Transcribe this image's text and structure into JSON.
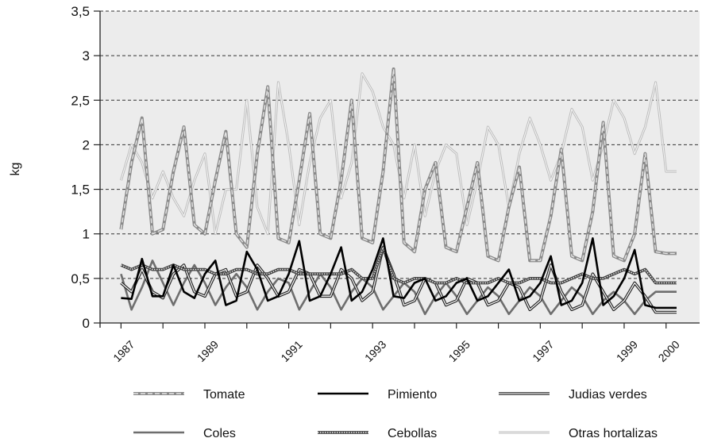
{
  "chart_data": {
    "type": "line",
    "title": "",
    "xlabel": "",
    "ylabel": "kg",
    "ylim": [
      0,
      3.5
    ],
    "xlim": [
      1986.5,
      2000.8
    ],
    "grid": true,
    "legend_position": "bottom",
    "y_ticks": [
      {
        "value": 0,
        "label": "0"
      },
      {
        "value": 0.5,
        "label": "0,5"
      },
      {
        "value": 1,
        "label": "1"
      },
      {
        "value": 1.5,
        "label": "1,5"
      },
      {
        "value": 2,
        "label": "2"
      },
      {
        "value": 2.5,
        "label": "2,5"
      },
      {
        "value": 3,
        "label": "3"
      },
      {
        "value": 3.5,
        "label": "3,5"
      }
    ],
    "x_ticks": [
      {
        "value": 1987,
        "label": "1987"
      },
      {
        "value": 1989,
        "label": "1989"
      },
      {
        "value": 1991,
        "label": "1991"
      },
      {
        "value": 1993,
        "label": "1993"
      },
      {
        "value": 1995,
        "label": "1995"
      },
      {
        "value": 1997,
        "label": "1997"
      },
      {
        "value": 1999,
        "label": "1999"
      },
      {
        "value": 2000,
        "label": "2000"
      }
    ],
    "x": [
      1987.0,
      1987.25,
      1987.5,
      1987.75,
      1988.0,
      1988.25,
      1988.5,
      1988.75,
      1989.0,
      1989.25,
      1989.5,
      1989.75,
      1990.0,
      1990.25,
      1990.5,
      1990.75,
      1991.0,
      1991.25,
      1991.5,
      1991.75,
      1992.0,
      1992.25,
      1992.5,
      1992.75,
      1993.0,
      1993.25,
      1993.5,
      1993.75,
      1994.0,
      1994.25,
      1994.5,
      1994.75,
      1995.0,
      1995.25,
      1995.5,
      1995.75,
      1996.0,
      1996.25,
      1996.5,
      1996.75,
      1997.0,
      1997.25,
      1997.5,
      1997.75,
      1998.0,
      1998.25,
      1998.5,
      1998.75,
      1999.0,
      1999.25,
      1999.5,
      1999.75,
      2000.0,
      2000.25
    ],
    "series": [
      {
        "name": "Tomate",
        "color": "#8f8f8f",
        "style": "dashed-double",
        "values": [
          1.05,
          1.8,
          2.3,
          1.0,
          1.05,
          1.7,
          2.2,
          1.1,
          1.0,
          1.6,
          2.15,
          1.0,
          0.85,
          1.9,
          2.65,
          0.95,
          0.9,
          1.6,
          2.35,
          1.0,
          0.95,
          1.6,
          2.5,
          0.95,
          0.9,
          1.7,
          2.85,
          0.9,
          0.8,
          1.5,
          1.8,
          0.85,
          0.8,
          1.3,
          1.8,
          0.75,
          0.7,
          1.3,
          1.75,
          0.7,
          0.7,
          1.2,
          1.95,
          0.75,
          0.7,
          1.25,
          2.25,
          0.75,
          0.7,
          1.0,
          1.9,
          0.8,
          0.78,
          0.78
        ]
      },
      {
        "name": "Pimiento",
        "color": "#000000",
        "style": "solid-thick",
        "values": [
          0.28,
          0.27,
          0.72,
          0.3,
          0.3,
          0.65,
          0.35,
          0.28,
          0.55,
          0.7,
          0.2,
          0.25,
          0.8,
          0.6,
          0.25,
          0.3,
          0.55,
          0.92,
          0.25,
          0.3,
          0.55,
          0.85,
          0.25,
          0.35,
          0.6,
          0.95,
          0.3,
          0.28,
          0.45,
          0.5,
          0.25,
          0.3,
          0.45,
          0.5,
          0.25,
          0.3,
          0.45,
          0.6,
          0.25,
          0.3,
          0.45,
          0.75,
          0.2,
          0.25,
          0.45,
          0.95,
          0.2,
          0.3,
          0.5,
          0.82,
          0.2,
          0.17,
          0.17,
          0.17
        ]
      },
      {
        "name": "Judias verdes",
        "color": "#333333",
        "style": "double",
        "values": [
          0.45,
          0.35,
          0.6,
          0.35,
          0.28,
          0.55,
          0.65,
          0.35,
          0.3,
          0.55,
          0.6,
          0.3,
          0.35,
          0.65,
          0.5,
          0.3,
          0.35,
          0.6,
          0.55,
          0.3,
          0.3,
          0.6,
          0.5,
          0.25,
          0.35,
          0.85,
          0.55,
          0.2,
          0.25,
          0.5,
          0.45,
          0.2,
          0.25,
          0.5,
          0.45,
          0.2,
          0.25,
          0.45,
          0.4,
          0.15,
          0.25,
          0.65,
          0.35,
          0.15,
          0.2,
          0.55,
          0.35,
          0.15,
          0.25,
          0.45,
          0.3,
          0.12,
          0.12,
          0.12
        ]
      },
      {
        "name": "Coles",
        "color": "#6e6e6e",
        "style": "solid-thick",
        "values": [
          0.55,
          0.15,
          0.4,
          0.7,
          0.45,
          0.2,
          0.45,
          0.65,
          0.45,
          0.2,
          0.4,
          0.55,
          0.4,
          0.15,
          0.35,
          0.5,
          0.45,
          0.15,
          0.35,
          0.55,
          0.4,
          0.15,
          0.35,
          0.5,
          0.4,
          0.15,
          0.3,
          0.45,
          0.35,
          0.1,
          0.3,
          0.45,
          0.3,
          0.1,
          0.25,
          0.4,
          0.3,
          0.1,
          0.25,
          0.4,
          0.3,
          0.1,
          0.25,
          0.4,
          0.3,
          0.1,
          0.25,
          0.35,
          0.25,
          0.1,
          0.25,
          0.35,
          0.35,
          0.35
        ]
      },
      {
        "name": "Cebollas",
        "color": "#555555",
        "style": "dotted-double",
        "values": [
          0.65,
          0.6,
          0.65,
          0.6,
          0.6,
          0.65,
          0.6,
          0.6,
          0.6,
          0.55,
          0.55,
          0.6,
          0.6,
          0.55,
          0.55,
          0.6,
          0.6,
          0.55,
          0.55,
          0.55,
          0.55,
          0.55,
          0.6,
          0.5,
          0.5,
          0.85,
          0.5,
          0.45,
          0.5,
          0.5,
          0.45,
          0.45,
          0.5,
          0.45,
          0.45,
          0.45,
          0.5,
          0.45,
          0.45,
          0.5,
          0.5,
          0.45,
          0.45,
          0.5,
          0.55,
          0.5,
          0.5,
          0.55,
          0.6,
          0.55,
          0.6,
          0.45,
          0.45,
          0.45
        ]
      },
      {
        "name": "Otras hortalizas",
        "color": "#c8c8c8",
        "style": "solid-light",
        "values": [
          1.6,
          2.0,
          1.8,
          1.4,
          1.7,
          1.4,
          1.2,
          1.6,
          1.9,
          1.0,
          1.5,
          1.5,
          2.5,
          1.3,
          1.0,
          2.7,
          2.0,
          1.1,
          1.8,
          2.3,
          2.5,
          1.4,
          1.8,
          2.8,
          2.6,
          2.2,
          2.0,
          1.4,
          2.0,
          1.2,
          1.7,
          2.0,
          1.9,
          1.1,
          1.6,
          2.2,
          2.0,
          1.3,
          1.9,
          2.3,
          2.0,
          1.6,
          1.9,
          2.4,
          2.2,
          1.6,
          2.0,
          2.5,
          2.3,
          1.9,
          2.2,
          2.7,
          1.7,
          1.7
        ]
      }
    ],
    "legend": [
      {
        "label": "Tomate"
      },
      {
        "label": "Pimiento"
      },
      {
        "label": "Judias verdes"
      },
      {
        "label": "Coles"
      },
      {
        "label": "Cebollas"
      },
      {
        "label": "Otras hortalizas"
      }
    ]
  }
}
